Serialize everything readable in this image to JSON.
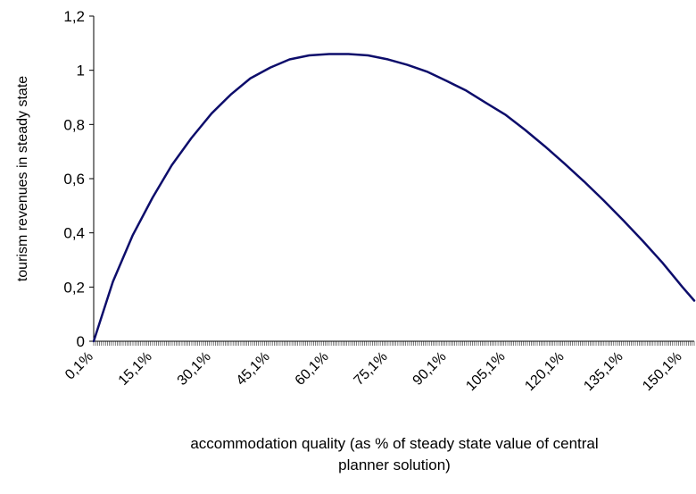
{
  "chart_data": {
    "type": "line",
    "title": "",
    "xlabel_lines": [
      "accommodation quality (as % of steady state value of central",
      "planner solution)"
    ],
    "ylabel": "tourism revenues in steady state",
    "xlim": [
      0.1,
      153.1
    ],
    "ylim": [
      0,
      1.2
    ],
    "y_ticks": [
      "0",
      "0,2",
      "0,4",
      "0,6",
      "0,8",
      "1",
      "1,2"
    ],
    "x_tick_labels": [
      "0,1%",
      "15,1%",
      "30,1%",
      "45,1%",
      "60,1%",
      "75,1%",
      "90,1%",
      "105,1%",
      "120,1%",
      "135,1%",
      "150,1%"
    ],
    "x_tick_label_values": [
      0.1,
      15.1,
      30.1,
      45.1,
      60.1,
      75.1,
      90.1,
      105.1,
      120.1,
      135.1,
      150.1
    ],
    "grid": false,
    "series": [
      {
        "color": "#0d0d6b",
        "x": [
          0.1,
          5,
          10,
          15.1,
          20,
          25,
          30.1,
          35,
          40,
          45.1,
          50,
          55,
          60.1,
          65,
          70,
          75.1,
          80,
          85,
          90.1,
          95,
          100,
          105.1,
          110,
          115,
          120.1,
          125,
          130,
          135.1,
          140,
          145,
          150.1,
          153.1
        ],
        "y": [
          0.0,
          0.22,
          0.39,
          0.53,
          0.65,
          0.75,
          0.84,
          0.91,
          0.97,
          1.01,
          1.04,
          1.055,
          1.06,
          1.06,
          1.055,
          1.04,
          1.02,
          0.995,
          0.96,
          0.925,
          0.88,
          0.835,
          0.78,
          0.72,
          0.655,
          0.59,
          0.52,
          0.445,
          0.37,
          0.29,
          0.2,
          0.15
        ]
      }
    ]
  }
}
